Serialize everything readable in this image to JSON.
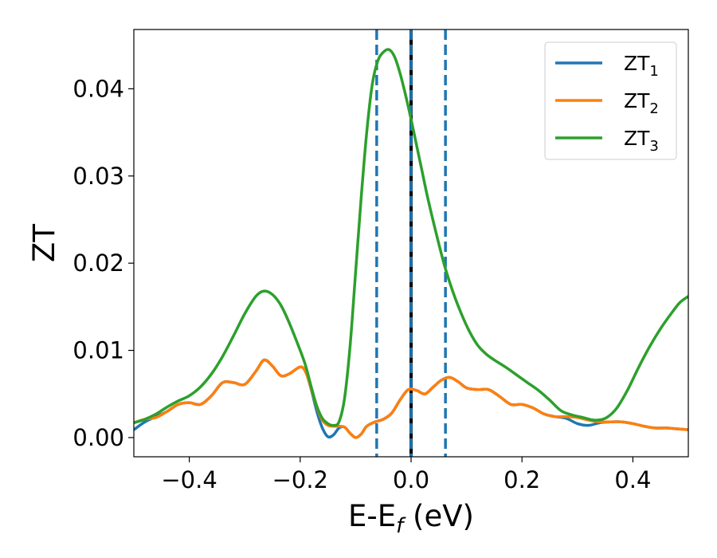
{
  "chart_data": {
    "type": "line",
    "title": "",
    "xlabel": "E-E",
    "xlabel_sub": "f",
    "xlabel_unit": " (eV)",
    "ylabel": "ZT",
    "xlim": [
      -0.5,
      0.5
    ],
    "ylim": [
      -0.0022,
      0.0468
    ],
    "grid": false,
    "legend_placement": "top-right",
    "x_ticks": [
      {
        "value": -0.4,
        "label": "−0.4"
      },
      {
        "value": -0.2,
        "label": "−0.2"
      },
      {
        "value": 0.0,
        "label": "0.0"
      },
      {
        "value": 0.2,
        "label": "0.2"
      },
      {
        "value": 0.4,
        "label": "0.4"
      }
    ],
    "y_ticks": [
      {
        "value": 0.0,
        "label": "0.00"
      },
      {
        "value": 0.01,
        "label": "0.01"
      },
      {
        "value": 0.02,
        "label": "0.02"
      },
      {
        "value": 0.03,
        "label": "0.03"
      },
      {
        "value": 0.04,
        "label": "0.04"
      }
    ],
    "vertical_lines": [
      {
        "x": -0.062,
        "style": "dashed",
        "color": "#1f77b4"
      },
      {
        "x": 0.0,
        "style": "solid",
        "color": "#000000"
      },
      {
        "x": 0.0,
        "style": "dashed",
        "color": "#1f77b4"
      },
      {
        "x": 0.062,
        "style": "dashed",
        "color": "#1f77b4"
      }
    ],
    "series": [
      {
        "name": "ZT",
        "subscript": "1",
        "color": "#1f77b4",
        "points": [
          [
            -0.5,
            0.0009
          ],
          [
            -0.48,
            0.0018
          ],
          [
            -0.46,
            0.0024
          ],
          [
            -0.44,
            0.003
          ],
          [
            -0.42,
            0.0038
          ],
          [
            -0.4,
            0.004
          ],
          [
            -0.38,
            0.0038
          ],
          [
            -0.36,
            0.0048
          ],
          [
            -0.34,
            0.0063
          ],
          [
            -0.32,
            0.0063
          ],
          [
            -0.3,
            0.0061
          ],
          [
            -0.28,
            0.0076
          ],
          [
            -0.265,
            0.0089
          ],
          [
            -0.25,
            0.0082
          ],
          [
            -0.235,
            0.0071
          ],
          [
            -0.22,
            0.0073
          ],
          [
            -0.2,
            0.0081
          ],
          [
            -0.19,
            0.0075
          ],
          [
            -0.18,
            0.0055
          ],
          [
            -0.17,
            0.003
          ],
          [
            -0.16,
            0.0011
          ],
          [
            -0.15,
            0.0001
          ],
          [
            -0.14,
            0.0003
          ],
          [
            -0.13,
            0.0011
          ],
          [
            -0.12,
            0.0012
          ],
          [
            -0.11,
            0.0005
          ],
          [
            -0.1,
            0.0
          ],
          [
            -0.09,
            0.0004
          ],
          [
            -0.08,
            0.0013
          ],
          [
            -0.065,
            0.0018
          ],
          [
            -0.05,
            0.0021
          ],
          [
            -0.035,
            0.0028
          ],
          [
            -0.02,
            0.0043
          ],
          [
            -0.005,
            0.0055
          ],
          [
            0.01,
            0.0054
          ],
          [
            0.025,
            0.005
          ],
          [
            0.04,
            0.0058
          ],
          [
            0.055,
            0.0066
          ],
          [
            0.07,
            0.0069
          ],
          [
            0.085,
            0.0064
          ],
          [
            0.1,
            0.0057
          ],
          [
            0.12,
            0.0055
          ],
          [
            0.14,
            0.0055
          ],
          [
            0.16,
            0.0047
          ],
          [
            0.18,
            0.0038
          ],
          [
            0.2,
            0.0038
          ],
          [
            0.22,
            0.0034
          ],
          [
            0.24,
            0.0027
          ],
          [
            0.26,
            0.0024
          ],
          [
            0.28,
            0.0022
          ],
          [
            0.3,
            0.0016
          ],
          [
            0.32,
            0.0014
          ],
          [
            0.34,
            0.0017
          ],
          [
            0.36,
            0.0018
          ],
          [
            0.38,
            0.0018
          ],
          [
            0.4,
            0.0016
          ],
          [
            0.42,
            0.0013
          ],
          [
            0.44,
            0.0011
          ],
          [
            0.46,
            0.0011
          ],
          [
            0.48,
            0.001
          ],
          [
            0.5,
            0.0009
          ]
        ]
      },
      {
        "name": "ZT",
        "subscript": "2",
        "color": "#ff7f0e",
        "points": [
          [
            -0.5,
            0.0017
          ],
          [
            -0.48,
            0.0021
          ],
          [
            -0.46,
            0.0023
          ],
          [
            -0.44,
            0.003
          ],
          [
            -0.42,
            0.0038
          ],
          [
            -0.4,
            0.004
          ],
          [
            -0.38,
            0.0038
          ],
          [
            -0.36,
            0.0048
          ],
          [
            -0.34,
            0.0063
          ],
          [
            -0.32,
            0.0063
          ],
          [
            -0.3,
            0.0061
          ],
          [
            -0.28,
            0.0076
          ],
          [
            -0.265,
            0.0089
          ],
          [
            -0.25,
            0.0082
          ],
          [
            -0.235,
            0.0071
          ],
          [
            -0.22,
            0.0073
          ],
          [
            -0.2,
            0.0081
          ],
          [
            -0.19,
            0.0075
          ],
          [
            -0.18,
            0.0056
          ],
          [
            -0.17,
            0.0035
          ],
          [
            -0.16,
            0.002
          ],
          [
            -0.15,
            0.0014
          ],
          [
            -0.14,
            0.0013
          ],
          [
            -0.13,
            0.0013
          ],
          [
            -0.12,
            0.0012
          ],
          [
            -0.11,
            0.0005
          ],
          [
            -0.1,
            0.0
          ],
          [
            -0.09,
            0.0004
          ],
          [
            -0.08,
            0.0013
          ],
          [
            -0.065,
            0.0018
          ],
          [
            -0.05,
            0.0021
          ],
          [
            -0.035,
            0.0028
          ],
          [
            -0.02,
            0.0043
          ],
          [
            -0.005,
            0.0055
          ],
          [
            0.01,
            0.0054
          ],
          [
            0.025,
            0.005
          ],
          [
            0.04,
            0.0058
          ],
          [
            0.055,
            0.0066
          ],
          [
            0.07,
            0.0069
          ],
          [
            0.085,
            0.0064
          ],
          [
            0.1,
            0.0057
          ],
          [
            0.12,
            0.0055
          ],
          [
            0.14,
            0.0055
          ],
          [
            0.16,
            0.0047
          ],
          [
            0.18,
            0.0038
          ],
          [
            0.2,
            0.0038
          ],
          [
            0.22,
            0.0034
          ],
          [
            0.24,
            0.0027
          ],
          [
            0.26,
            0.0024
          ],
          [
            0.28,
            0.0024
          ],
          [
            0.3,
            0.0023
          ],
          [
            0.32,
            0.002
          ],
          [
            0.34,
            0.0018
          ],
          [
            0.36,
            0.0018
          ],
          [
            0.38,
            0.0018
          ],
          [
            0.4,
            0.0016
          ],
          [
            0.42,
            0.0013
          ],
          [
            0.44,
            0.0011
          ],
          [
            0.46,
            0.0011
          ],
          [
            0.48,
            0.001
          ],
          [
            0.5,
            0.0009
          ]
        ]
      },
      {
        "name": "ZT",
        "subscript": "3",
        "color": "#2ca02c",
        "points": [
          [
            -0.5,
            0.0017
          ],
          [
            -0.48,
            0.0021
          ],
          [
            -0.46,
            0.0027
          ],
          [
            -0.44,
            0.0035
          ],
          [
            -0.42,
            0.0042
          ],
          [
            -0.4,
            0.0048
          ],
          [
            -0.38,
            0.0058
          ],
          [
            -0.36,
            0.0073
          ],
          [
            -0.34,
            0.0093
          ],
          [
            -0.32,
            0.0117
          ],
          [
            -0.3,
            0.0142
          ],
          [
            -0.28,
            0.0162
          ],
          [
            -0.265,
            0.0168
          ],
          [
            -0.25,
            0.0164
          ],
          [
            -0.235,
            0.0152
          ],
          [
            -0.22,
            0.0132
          ],
          [
            -0.2,
            0.01
          ],
          [
            -0.19,
            0.0082
          ],
          [
            -0.18,
            0.0058
          ],
          [
            -0.17,
            0.0036
          ],
          [
            -0.16,
            0.0022
          ],
          [
            -0.15,
            0.0016
          ],
          [
            -0.14,
            0.0014
          ],
          [
            -0.13,
            0.0018
          ],
          [
            -0.12,
            0.0045
          ],
          [
            -0.11,
            0.0105
          ],
          [
            -0.1,
            0.019
          ],
          [
            -0.09,
            0.0275
          ],
          [
            -0.08,
            0.035
          ],
          [
            -0.07,
            0.0405
          ],
          [
            -0.06,
            0.0432
          ],
          [
            -0.05,
            0.0442
          ],
          [
            -0.04,
            0.0445
          ],
          [
            -0.03,
            0.0437
          ],
          [
            -0.02,
            0.0418
          ],
          [
            -0.01,
            0.0393
          ],
          [
            0.0,
            0.0365
          ],
          [
            0.01,
            0.0335
          ],
          [
            0.02,
            0.0305
          ],
          [
            0.03,
            0.0275
          ],
          [
            0.045,
            0.0235
          ],
          [
            0.06,
            0.0198
          ],
          [
            0.075,
            0.0168
          ],
          [
            0.09,
            0.0143
          ],
          [
            0.105,
            0.0122
          ],
          [
            0.12,
            0.0106
          ],
          [
            0.135,
            0.0096
          ],
          [
            0.15,
            0.0089
          ],
          [
            0.17,
            0.0081
          ],
          [
            0.19,
            0.0072
          ],
          [
            0.21,
            0.0063
          ],
          [
            0.23,
            0.0054
          ],
          [
            0.25,
            0.0043
          ],
          [
            0.27,
            0.0031
          ],
          [
            0.29,
            0.0026
          ],
          [
            0.31,
            0.0023
          ],
          [
            0.33,
            0.002
          ],
          [
            0.35,
            0.0022
          ],
          [
            0.37,
            0.0033
          ],
          [
            0.39,
            0.0054
          ],
          [
            0.41,
            0.008
          ],
          [
            0.43,
            0.0104
          ],
          [
            0.45,
            0.0125
          ],
          [
            0.47,
            0.0143
          ],
          [
            0.485,
            0.0155
          ],
          [
            0.5,
            0.0162
          ]
        ]
      }
    ]
  }
}
